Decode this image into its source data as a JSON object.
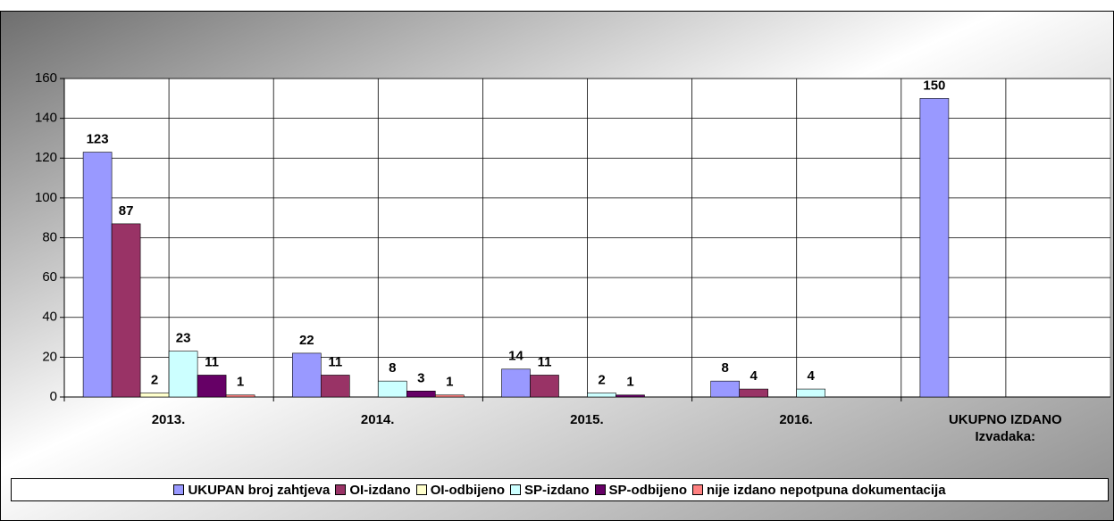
{
  "chart_data": {
    "type": "bar",
    "categories": [
      "2013.",
      "2014.",
      "2015.",
      "2016.",
      "UKUPNO IZDANO\nIzvadaka:"
    ],
    "series": [
      {
        "name": "UKUPAN broj zahtjeva",
        "color": "#9999ff",
        "values": [
          123,
          22,
          14,
          8,
          150
        ]
      },
      {
        "name": "OI-izdano",
        "color": "#993366",
        "values": [
          87,
          11,
          11,
          4,
          null
        ]
      },
      {
        "name": "OI-odbijeno",
        "color": "#ffffcc",
        "values": [
          2,
          null,
          null,
          null,
          null
        ]
      },
      {
        "name": "SP-izdano",
        "color": "#ccffff",
        "values": [
          23,
          8,
          2,
          4,
          null
        ]
      },
      {
        "name": "SP-odbijeno",
        "color": "#660066",
        "values": [
          11,
          3,
          1,
          null,
          null
        ]
      },
      {
        "name": "nije izdano nepotpuna dokumentacija",
        "color": "#ff8080",
        "values": [
          1,
          1,
          null,
          null,
          null
        ]
      }
    ],
    "ylim": [
      0,
      160
    ],
    "yticks": [
      0,
      20,
      40,
      60,
      80,
      100,
      120,
      140,
      160
    ],
    "grid": true
  }
}
